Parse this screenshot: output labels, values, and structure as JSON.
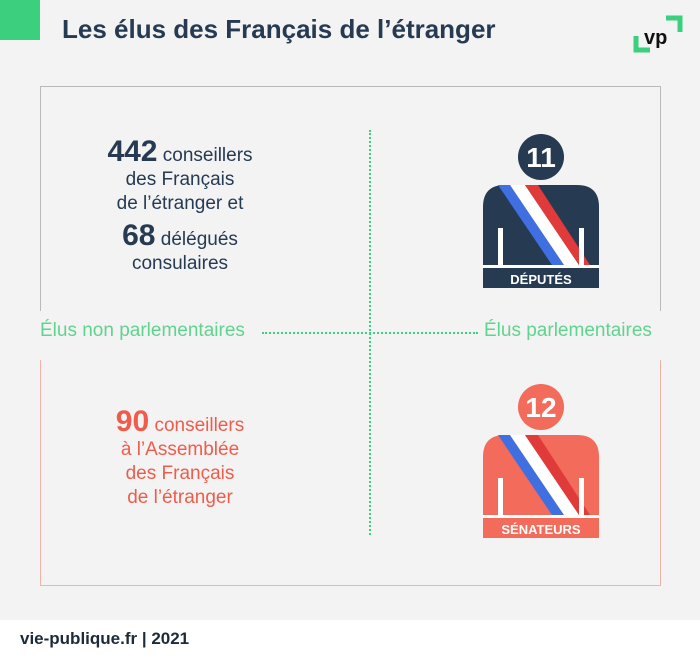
{
  "title": "Les élus des Français de l’étranger",
  "logo": "vp",
  "colors": {
    "navy": "#263a52",
    "salmon": "#f26b5b",
    "green": "#3ccf7e",
    "blue": "#3f6fe0",
    "red": "#e03a3a"
  },
  "labels": {
    "non_parl": "Élus non parlementaires",
    "parl": "Élus parlementaires"
  },
  "stat1": {
    "n1": "442",
    "t1": "conseillers",
    "t2": "des Français",
    "t3": "de l’étranger et",
    "n2": "68",
    "t4": "délégués",
    "t5": "consulaires"
  },
  "stat2": {
    "n": "90",
    "t1": "conseillers",
    "t2": "à l’Assemblée",
    "t3": "des Français",
    "t4": "de l’étranger"
  },
  "deputes": {
    "count": "11",
    "label": "DÉPUTÉS"
  },
  "senateurs": {
    "count": "12",
    "label": "SÉNATEURS"
  },
  "footer": "vie-publique.fr | 2021"
}
